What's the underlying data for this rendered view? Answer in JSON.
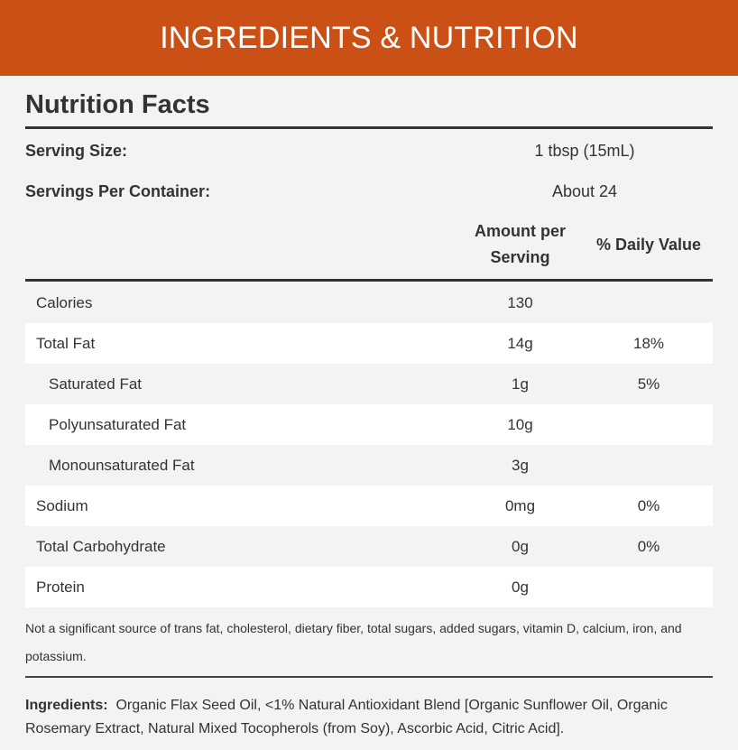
{
  "header": {
    "title": "INGREDIENTS & NUTRITION"
  },
  "facts": {
    "title": "Nutrition Facts",
    "serving_size_label": "Serving Size:",
    "serving_size_value": "1 tbsp (15mL)",
    "servings_label": "Servings Per Container:",
    "servings_value": "About 24",
    "col_amount_line1": "Amount per",
    "col_amount_line2": "Serving",
    "col_dv": "% Daily Value",
    "rows": [
      {
        "name": "Calories",
        "amount": "130",
        "dv": ""
      },
      {
        "name": "Total Fat",
        "amount": "14g",
        "dv": "18%"
      },
      {
        "name": "Saturated Fat",
        "amount": "1g",
        "dv": "5%"
      },
      {
        "name": "Polyunsaturated Fat",
        "amount": "10g",
        "dv": ""
      },
      {
        "name": "Monounsaturated Fat",
        "amount": "3g",
        "dv": ""
      },
      {
        "name": "Sodium",
        "amount": "0mg",
        "dv": "0%"
      },
      {
        "name": "Total Carbohydrate",
        "amount": "0g",
        "dv": "0%"
      },
      {
        "name": "Protein",
        "amount": "0g",
        "dv": ""
      }
    ],
    "footnote": "Not a significant source of trans fat, cholesterol, dietary fiber, total sugars, added sugars, vitamin D, calcium, iron, and potassium.",
    "ingredients_label": "Ingredients:",
    "ingredients_text": "Organic Flax Seed Oil, <1% Natural Antioxidant Blend [Organic Sunflower Oil, Organic Rosemary Extract, Natural Mixed Tocopherols (from Soy), Ascorbic Acid, Citric Acid]."
  }
}
